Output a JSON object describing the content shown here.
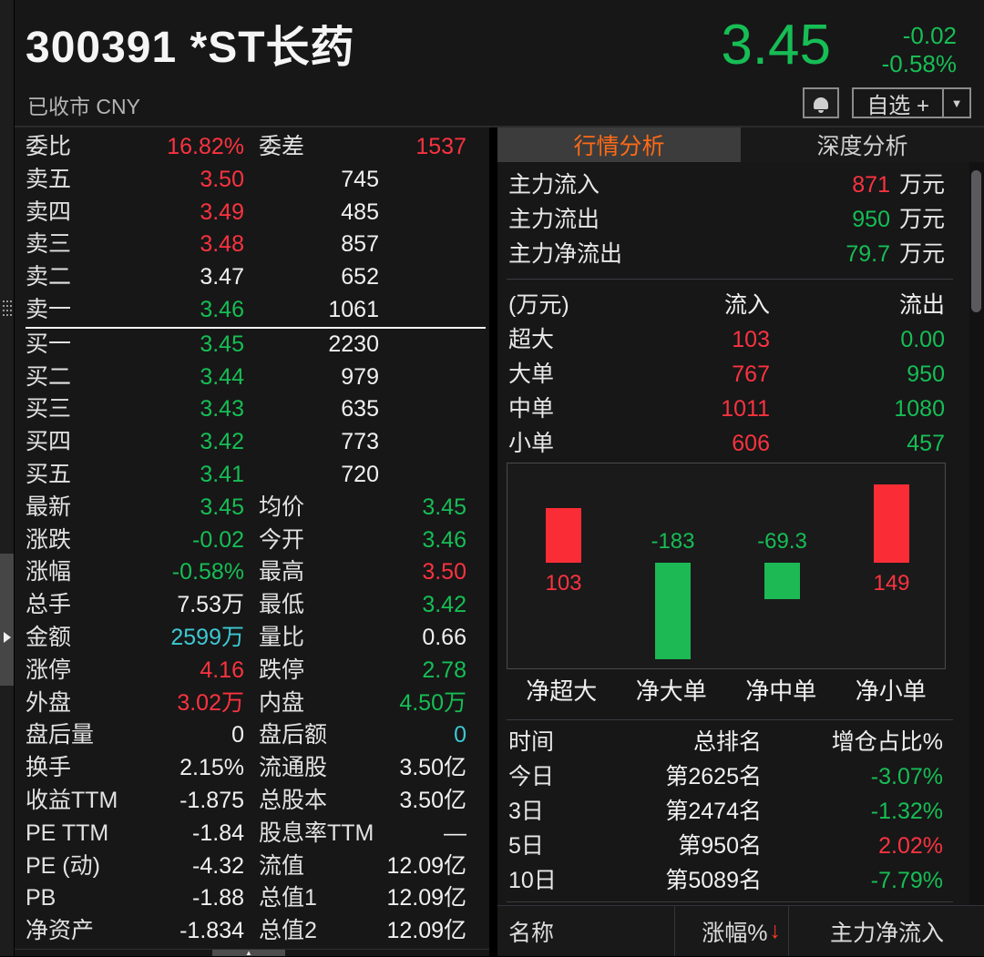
{
  "header": {
    "code_name": "300391 *ST长药",
    "status": "已收市 CNY",
    "price": "3.45",
    "change": "-0.02",
    "change_pct": "-0.58%",
    "price_color": "g",
    "watchlist_button": "自选 +",
    "dropdown_glyph": "▼"
  },
  "colors": {
    "red": "#fa3340",
    "green": "#17bd55",
    "cyan": "#3dc8d2",
    "orange": "#ff6a16",
    "background": "#171717"
  },
  "order_panel": {
    "weibi_label": "委比",
    "weibi_value": "16.82%",
    "weibi_color": "r",
    "weicha_label": "委差",
    "weicha_value": "1537",
    "weicha_color": "r",
    "asks": [
      {
        "label": "卖五",
        "price": "3.50",
        "color": "r",
        "volume": "745"
      },
      {
        "label": "卖四",
        "price": "3.49",
        "color": "r",
        "volume": "485"
      },
      {
        "label": "卖三",
        "price": "3.48",
        "color": "r",
        "volume": "857"
      },
      {
        "label": "卖二",
        "price": "3.47",
        "color": "w",
        "volume": "652"
      },
      {
        "label": "卖一",
        "price": "3.46",
        "color": "g",
        "volume": "1061"
      }
    ],
    "bids": [
      {
        "label": "买一",
        "price": "3.45",
        "color": "g",
        "volume": "2230"
      },
      {
        "label": "买二",
        "price": "3.44",
        "color": "g",
        "volume": "979"
      },
      {
        "label": "买三",
        "price": "3.43",
        "color": "g",
        "volume": "635"
      },
      {
        "label": "买四",
        "price": "3.42",
        "color": "g",
        "volume": "773"
      },
      {
        "label": "买五",
        "price": "3.41",
        "color": "g",
        "volume": "720"
      }
    ],
    "stats": [
      {
        "l1": "最新",
        "v1": "3.45",
        "c1": "g",
        "l2": "均价",
        "v2": "3.45",
        "c2": "g"
      },
      {
        "l1": "涨跌",
        "v1": "-0.02",
        "c1": "g",
        "l2": "今开",
        "v2": "3.46",
        "c2": "g"
      },
      {
        "l1": "涨幅",
        "v1": "-0.58%",
        "c1": "g",
        "l2": "最高",
        "v2": "3.50",
        "c2": "r"
      },
      {
        "l1": "总手",
        "v1": "7.53万",
        "c1": "w",
        "l2": "最低",
        "v2": "3.42",
        "c2": "g"
      },
      {
        "l1": "金额",
        "v1": "2599万",
        "c1": "c",
        "l2": "量比",
        "v2": "0.66",
        "c2": "w"
      },
      {
        "l1": "涨停",
        "v1": "4.16",
        "c1": "r",
        "l2": "跌停",
        "v2": "2.78",
        "c2": "g"
      },
      {
        "l1": "外盘",
        "v1": "3.02万",
        "c1": "r",
        "l2": "内盘",
        "v2": "4.50万",
        "c2": "g"
      },
      {
        "l1": "盘后量",
        "v1": "0",
        "c1": "w",
        "l2": "盘后额",
        "v2": "0",
        "c2": "c"
      },
      {
        "l1": "换手",
        "v1": "2.15%",
        "c1": "w",
        "l2": "流通股",
        "v2": "3.50亿",
        "c2": "w"
      },
      {
        "l1": "收益TTM",
        "v1": "-1.875",
        "c1": "w",
        "l2": "总股本",
        "v2": "3.50亿",
        "c2": "w"
      },
      {
        "l1": "PE TTM",
        "v1": "-1.84",
        "c1": "w",
        "l2": "股息率TTM",
        "v2": "—",
        "c2": "w"
      },
      {
        "l1": "PE (动)",
        "v1": "-4.32",
        "c1": "w",
        "l2": "流值",
        "v2": "12.09亿",
        "c2": "w"
      },
      {
        "l1": "PB",
        "v1": "-1.88",
        "c1": "w",
        "l2": "总值1",
        "v2": "12.09亿",
        "c2": "w"
      },
      {
        "l1": "净资产",
        "v1": "-1.834",
        "c1": "w",
        "l2": "总值2",
        "v2": "12.09亿",
        "c2": "w"
      }
    ]
  },
  "analysis": {
    "tabs": [
      "行情分析",
      "深度分析"
    ],
    "flows": [
      {
        "label": "主力流入",
        "value": "871",
        "color": "r",
        "unit": "万元"
      },
      {
        "label": "主力流出",
        "value": "950",
        "color": "g",
        "unit": "万元"
      },
      {
        "label": "主力净流出",
        "value": "79.7",
        "color": "g",
        "unit": "万元"
      }
    ],
    "flow_table": {
      "headers": [
        "(万元)",
        "流入",
        "流出"
      ],
      "rows": [
        {
          "name": "超大",
          "inflow": "103",
          "outflow": "0.00"
        },
        {
          "name": "大单",
          "inflow": "767",
          "outflow": "950"
        },
        {
          "name": "中单",
          "inflow": "1011",
          "outflow": "1080"
        },
        {
          "name": "小单",
          "inflow": "606",
          "outflow": "457"
        }
      ],
      "inflow_color": "r",
      "outflow_color": "g"
    },
    "chart_data": {
      "type": "bar",
      "categories": [
        "净超大",
        "净大单",
        "净中单",
        "净小单"
      ],
      "values": [
        103,
        -183,
        -69.3,
        149
      ],
      "value_labels": [
        "103",
        "-183",
        "-69.3",
        "149"
      ],
      "bar_colors": [
        "r",
        "g",
        "g",
        "r"
      ],
      "unit": "万元",
      "ylim": [
        -195,
        190
      ],
      "grid": false,
      "legend": false
    },
    "ranking": {
      "headers": [
        "时间",
        "总排名",
        "增仓占比%"
      ],
      "rows": [
        {
          "period": "今日",
          "rank": "第2625名",
          "pct": "-3.07%",
          "color": "g"
        },
        {
          "period": "3日",
          "rank": "第2474名",
          "pct": "-1.32%",
          "color": "g"
        },
        {
          "period": "5日",
          "rank": "第950名",
          "pct": "2.02%",
          "color": "r"
        },
        {
          "period": "10日",
          "rank": "第5089名",
          "pct": "-7.79%",
          "color": "g"
        }
      ]
    },
    "bottom_header": {
      "name": "名称",
      "change": "涨幅%",
      "sort_arrow": "↓",
      "main_inflow": "主力净流入"
    }
  }
}
